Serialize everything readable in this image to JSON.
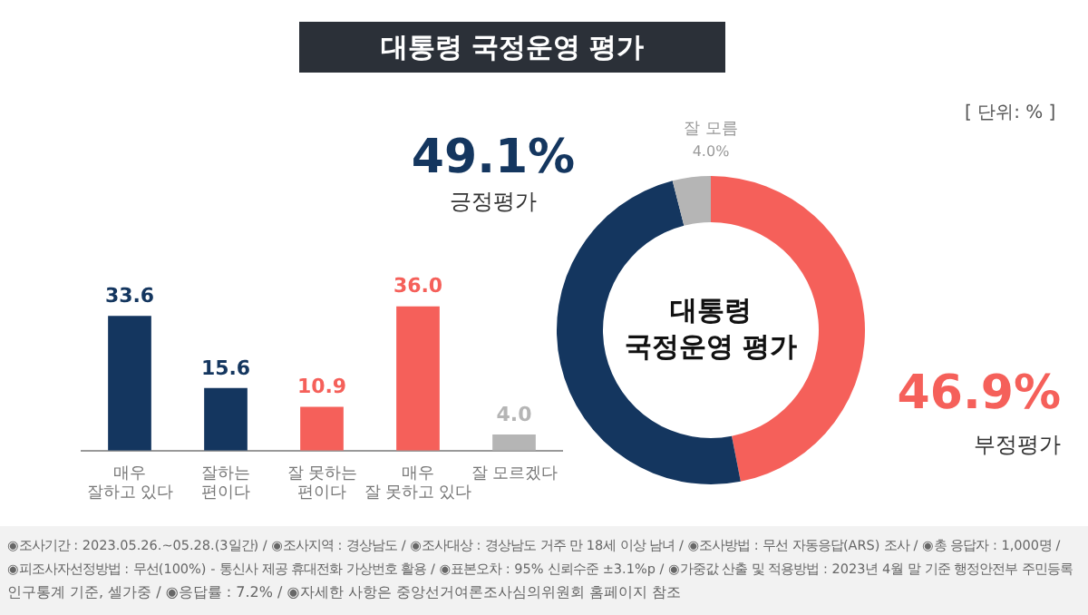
{
  "chart_data": [
    {
      "type": "bar",
      "title": "대통령 국정운영 평가",
      "categories": [
        "매우\n잘하고 있다",
        "잘하는\n편이다",
        "잘 못하는\n편이다",
        "매우\n잘 못하고 있다",
        "잘 모르겠다"
      ],
      "values": [
        33.6,
        15.6,
        10.9,
        36.0,
        4.0
      ],
      "colors": [
        "#14365f",
        "#14365f",
        "#f5605a",
        "#f5605a",
        "#b5b5b5"
      ],
      "value_labels": [
        "33.6",
        "15.6",
        "10.9",
        "36.0",
        "4.0"
      ],
      "grid": false,
      "legend": false,
      "annotations": [
        "◉조사기간 : 2023.05.26.~05.28.(3일간) / ◉조사지역 : 경상남도 / ◉조사대상 : 경상남도 거주 만 18세 이상 남녀 / ◉조사방법 : 무선 자동응답(ARS) 조사 / ◉총 응답자 : 1,000명 /",
        "◉피조사자선정방법 : 무선(100%) - 통신사 제공 휴대전화 가상번호 활용 / ◉표본오차 : 95% 신뢰수준 ±3.1%p / ◉가중값 산출 및 적용방법 : 2023년 4월 말 기준 행정안전부 주민등록",
        "인구통계 기준, 셀가중 / ◉응답률 : 7.2% / ◉자세한 사항은 중앙선거여론조사심의위원회 홈페이지 참조"
      ]
    },
    {
      "type": "donut",
      "title": "대통령\n국정운영 평가",
      "categories": [
        "부정평가",
        "긍정평가",
        "잘 모름"
      ],
      "values": [
        46.9,
        49.1,
        4.0
      ],
      "colors": [
        "#f5605a",
        "#14365f",
        "#b5b5b5"
      ],
      "value_labels": [
        "46.9%",
        "49.1%",
        "4.0%"
      ],
      "legend": false,
      "annotations": [
        "[ 단위: % ]"
      ]
    }
  ]
}
